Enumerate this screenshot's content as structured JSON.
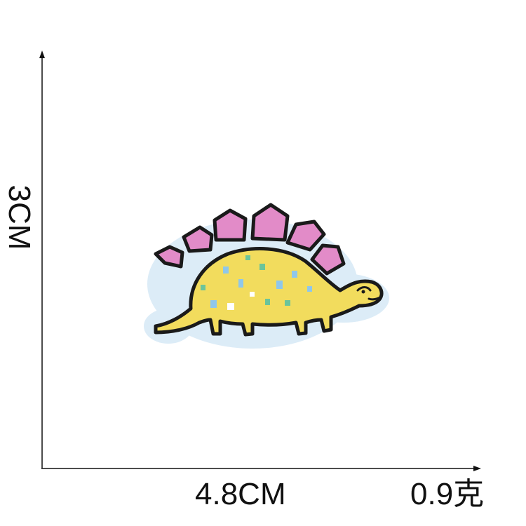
{
  "dimensions": {
    "height_label": "3CM",
    "width_label": "4.8CM",
    "weight_label": "0.9克"
  },
  "colors": {
    "background": "#ffffff",
    "axis": "#111111",
    "patch_border": "#dcecf7",
    "outline": "#1a1a1a",
    "body": "#f2dc5d",
    "plates": "#e28bc8",
    "spots": [
      "#8fc7ea",
      "#6bc49a",
      "#ffffff"
    ]
  },
  "image": {
    "subject": "stegosaurus-embroidered-patch"
  }
}
